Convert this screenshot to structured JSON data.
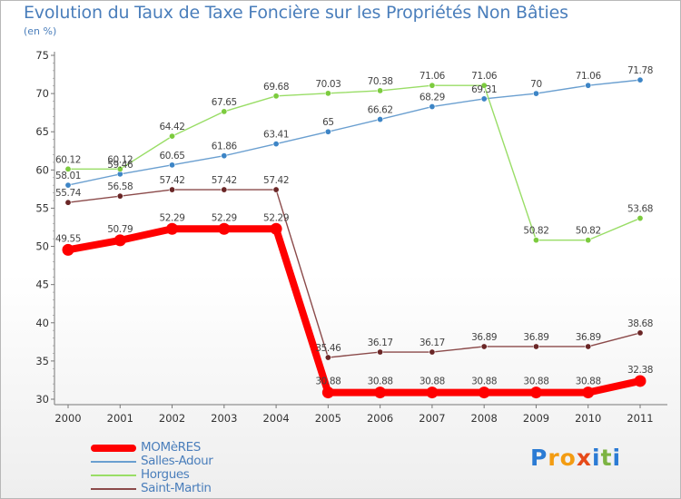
{
  "title": "Evolution du Taux de Taxe Foncière sur les Propriétés Non Bâties",
  "subtitle": "(en %)",
  "logo": {
    "letters": [
      "P",
      "r",
      "o",
      "x",
      "i",
      "t",
      "i"
    ],
    "colors": [
      "#2b7bd4",
      "#f39c12",
      "#f39c12",
      "#e64a19",
      "#2b7bd4",
      "#7cb342",
      "#2b7bd4"
    ]
  },
  "chart_data": {
    "type": "line",
    "title": "Evolution du Taux de Taxe Foncière sur les Propriétés Non Bâties",
    "ylabel": "(en %)",
    "xlabel": "",
    "ylim": [
      30,
      75
    ],
    "yticks": [
      30,
      35,
      40,
      45,
      50,
      55,
      60,
      65,
      70,
      75
    ],
    "categories": [
      "2000",
      "2001",
      "2002",
      "2003",
      "2004",
      "2005",
      "2006",
      "2007",
      "2008",
      "2009",
      "2010",
      "2011"
    ],
    "grid": false,
    "legend": "bottom-left",
    "series": [
      {
        "name": "MOMèRES",
        "color": "#ff0000",
        "values": [
          49.55,
          50.79,
          52.29,
          52.29,
          52.29,
          30.88,
          30.88,
          30.88,
          30.88,
          30.88,
          30.88,
          32.38
        ],
        "labels": [
          "49.55",
          "50.79",
          "52.29",
          "52.29",
          "52.29",
          "30.88",
          "30.88",
          "30.88",
          "30.88",
          "30.88",
          "30.88",
          "32.38"
        ]
      },
      {
        "name": "Salles-Adour",
        "color": "#6a9fd0",
        "values": [
          58.01,
          59.46,
          60.65,
          61.86,
          63.41,
          65,
          66.62,
          68.29,
          69.31,
          70,
          71.06,
          71.78
        ],
        "labels": [
          "58.01",
          "59.46",
          "60.65",
          "61.86",
          "63.41",
          "65",
          "66.62",
          "68.29",
          "69.31",
          "70",
          "71.06",
          "71.78"
        ]
      },
      {
        "name": "Horgues",
        "color": "#99dd66",
        "values": [
          60.12,
          60.12,
          64.42,
          67.65,
          69.68,
          70.03,
          70.38,
          71.06,
          71.06,
          50.82,
          50.82,
          53.68
        ],
        "labels": [
          "60.12",
          "60.12",
          "64.42",
          "67.65",
          "69.68",
          "70.03",
          "70.38",
          "71.06",
          "71.06",
          "50.82",
          "50.82",
          "53.68"
        ]
      },
      {
        "name": "Saint-Martin",
        "color": "#8b4a4a",
        "values": [
          55.74,
          56.58,
          57.42,
          57.42,
          57.42,
          35.46,
          36.17,
          36.17,
          36.89,
          36.89,
          36.89,
          38.68
        ],
        "labels": [
          "55.74",
          "56.58",
          "57.42",
          "57.42",
          "57.42",
          "35.46",
          "36.17",
          "36.17",
          "36.89",
          "36.89",
          "36.89",
          "38.68"
        ]
      }
    ]
  }
}
